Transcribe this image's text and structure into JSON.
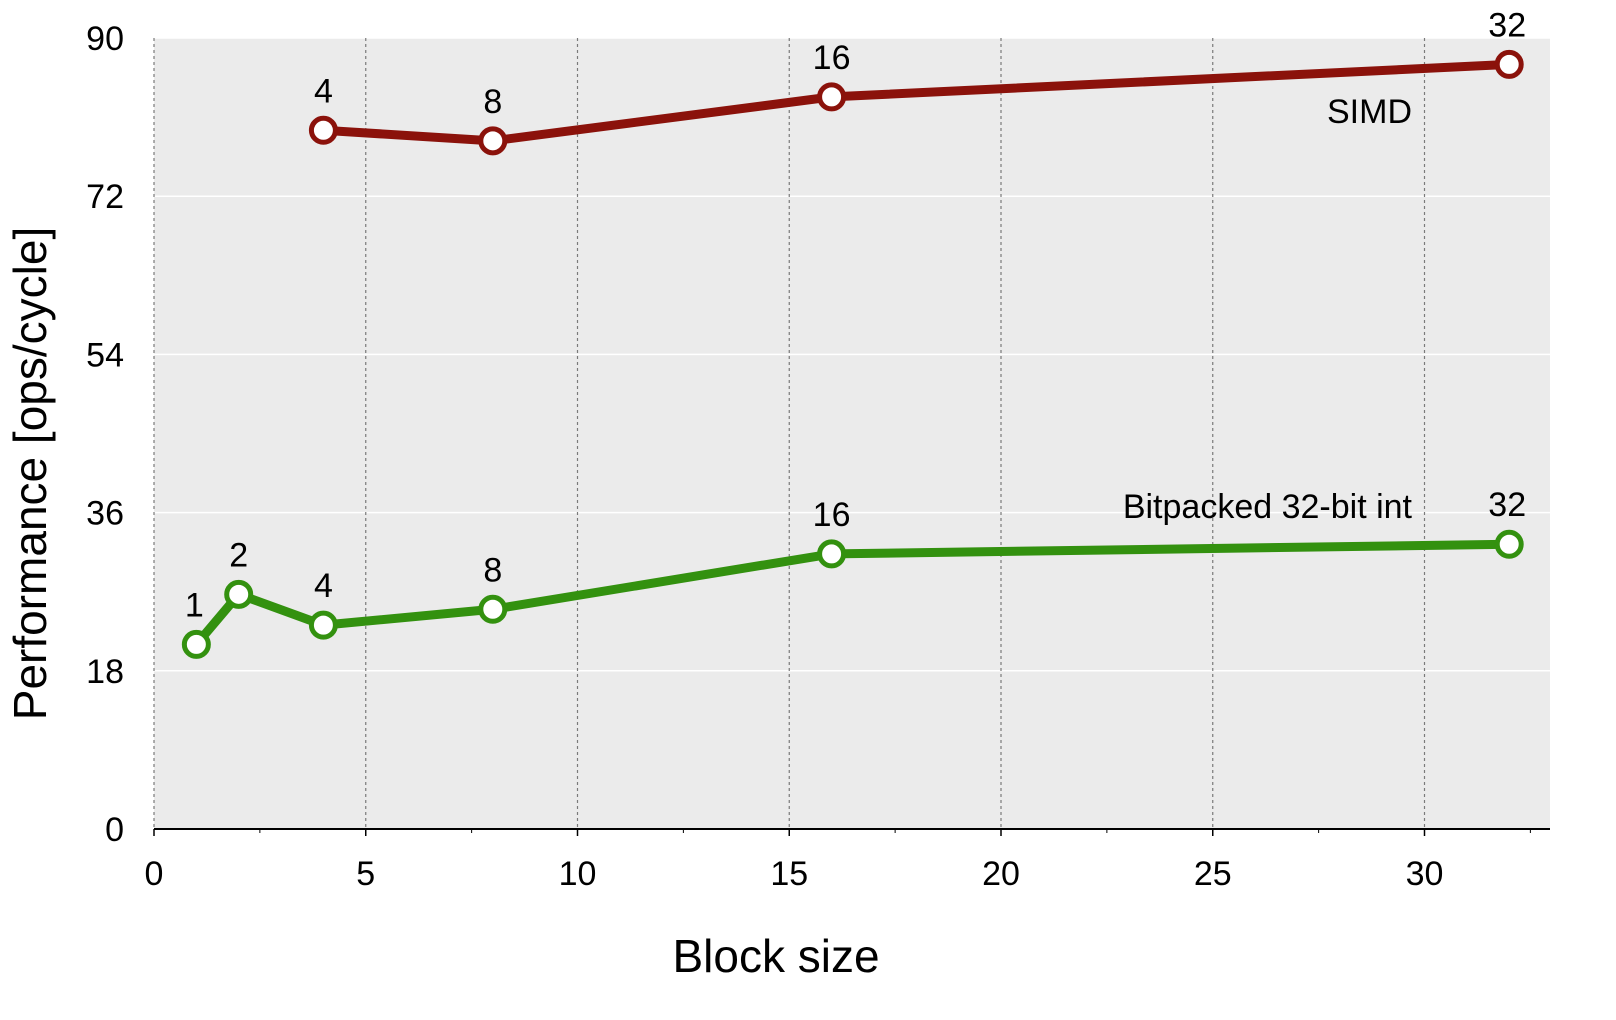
{
  "chart_data": {
    "type": "line",
    "title": "",
    "xlabel": "Block size",
    "ylabel": "Performance [ops/cycle]",
    "xlim": [
      0,
      33
    ],
    "ylim": [
      0,
      90
    ],
    "xticks": [
      0,
      5,
      10,
      15,
      20,
      25,
      30
    ],
    "yticks": [
      0,
      18,
      36,
      54,
      72,
      90
    ],
    "grid": true,
    "series": [
      {
        "name": "SIMD",
        "color": "#8b120b",
        "x": [
          4,
          8,
          16,
          32
        ],
        "y": [
          79.5,
          78.3,
          83.3,
          87.0
        ],
        "point_labels": [
          "4",
          "8",
          "16",
          "32"
        ]
      },
      {
        "name": "Bitpacked 32-bit int",
        "color": "#33910f",
        "x": [
          1,
          2,
          4,
          8,
          16,
          32
        ],
        "y": [
          21.0,
          26.7,
          23.2,
          25.0,
          31.3,
          32.4
        ],
        "point_labels": [
          "1",
          "2",
          "4",
          "8",
          "16",
          "32"
        ]
      }
    ]
  }
}
